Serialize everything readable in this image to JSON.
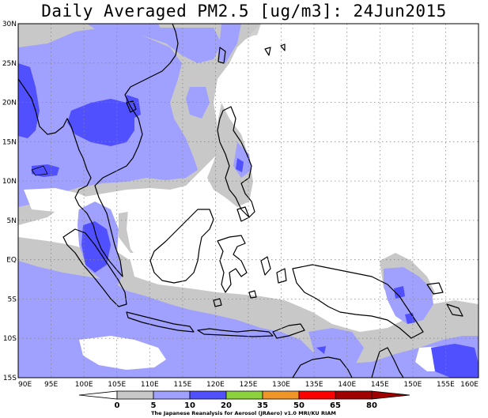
{
  "title": "Daily Averaged PM2.5 [ug/m3]: 24Jun2015",
  "credit": "The Japanese Reanalysis for Aerosol (JRAero) v1.0 MRI/KU RIAM",
  "map": {
    "lon_range": [
      90,
      160
    ],
    "lat_range": [
      -15,
      30
    ],
    "lon_ticks": [
      "90E",
      "95E",
      "100E",
      "105E",
      "110E",
      "115E",
      "120E",
      "125E",
      "130E",
      "135E",
      "140E",
      "145E",
      "150E",
      "155E",
      "160E"
    ],
    "lat_ticks": [
      "15S",
      "10S",
      "5S",
      "EQ",
      "5N",
      "10N",
      "15N",
      "20N",
      "25N",
      "30N"
    ],
    "grid": true
  },
  "legend": {
    "levels": [
      "0",
      "5",
      "10",
      "20",
      "35",
      "50",
      "65",
      "80"
    ],
    "colors": [
      "#ffffff",
      "#c8c8c8",
      "#a0a0ff",
      "#5050ff",
      "#8cd23c",
      "#f09628",
      "#ff0000",
      "#a00000"
    ]
  },
  "palette": {
    "bin_5_10": "#c8c8c8",
    "bin_10_20": "#a0a0ff",
    "bin_20_35": "#5050ff"
  }
}
